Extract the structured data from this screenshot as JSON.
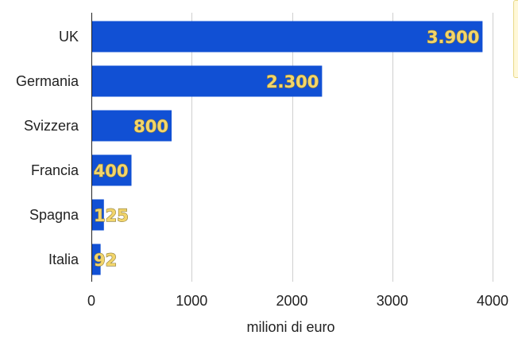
{
  "chart_data": {
    "type": "bar",
    "orientation": "horizontal",
    "categories": [
      "UK",
      "Germania",
      "Svizzera",
      "Francia",
      "Spagna",
      "Italia"
    ],
    "values": [
      3900,
      2300,
      800,
      400,
      125,
      92
    ],
    "data_labels": [
      "3.900",
      "2.300",
      "800",
      "400",
      "125",
      "92"
    ],
    "xlabel": "milioni di euro",
    "ylabel": "",
    "xlim": [
      0,
      4000
    ],
    "x_ticks": [
      0,
      1000,
      2000,
      3000,
      4000
    ],
    "x_tick_labels": [
      "0",
      "1000",
      "2000",
      "3000",
      "4000"
    ],
    "grid": "vertical",
    "colors": {
      "bar": "#1150d4",
      "data_label": "#f2d56b",
      "grid": "#cfcfcf",
      "axis": "#222222"
    }
  }
}
